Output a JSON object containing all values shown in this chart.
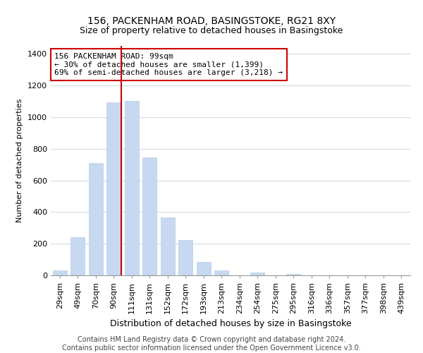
{
  "title": "156, PACKENHAM ROAD, BASINGSTOKE, RG21 8XY",
  "subtitle": "Size of property relative to detached houses in Basingstoke",
  "xlabel": "Distribution of detached houses by size in Basingstoke",
  "ylabel": "Number of detached properties",
  "footer_line1": "Contains HM Land Registry data © Crown copyright and database right 2024.",
  "footer_line2": "Contains public sector information licensed under the Open Government Licence v3.0.",
  "categories": [
    "29sqm",
    "49sqm",
    "70sqm",
    "90sqm",
    "111sqm",
    "131sqm",
    "152sqm",
    "172sqm",
    "193sqm",
    "213sqm",
    "234sqm",
    "254sqm",
    "275sqm",
    "295sqm",
    "316sqm",
    "336sqm",
    "357sqm",
    "377sqm",
    "398sqm",
    "439sqm"
  ],
  "values": [
    30,
    240,
    710,
    1095,
    1100,
    745,
    365,
    225,
    85,
    30,
    0,
    20,
    0,
    10,
    0,
    0,
    0,
    0,
    0,
    0
  ],
  "bar_color": "#c6d9f0",
  "bar_edge_color": "#b8cce4",
  "grid_color": "#d0dce8",
  "property_line_color": "#cc0000",
  "annotation_line1": "156 PACKENHAM ROAD: 99sqm",
  "annotation_line2": "← 30% of detached houses are smaller (1,399)",
  "annotation_line3": "69% of semi-detached houses are larger (3,218) →",
  "annotation_box_color": "#ffffff",
  "annotation_box_edge_color": "#cc0000",
  "ylim": [
    0,
    1450
  ],
  "yticks": [
    0,
    200,
    400,
    600,
    800,
    1000,
    1200,
    1400
  ],
  "title_fontsize": 10,
  "subtitle_fontsize": 9,
  "xlabel_fontsize": 9,
  "ylabel_fontsize": 8,
  "tick_fontsize": 8,
  "annotation_fontsize": 8,
  "footer_fontsize": 7
}
